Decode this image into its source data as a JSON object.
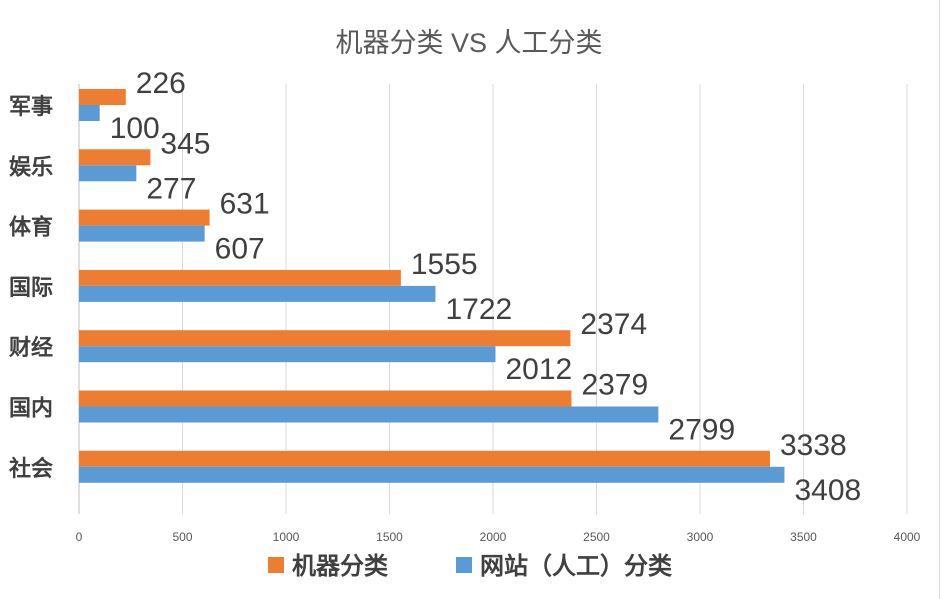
{
  "chart_data": {
    "type": "bar",
    "orientation": "horizontal",
    "title": "机器分类 VS 人工分类",
    "categories": [
      "军事",
      "娱乐",
      "体育",
      "国际",
      "财经",
      "国内",
      "社会"
    ],
    "series": [
      {
        "name": "机器分类",
        "color": "#ED7D31",
        "values": [
          226,
          345,
          631,
          1555,
          2374,
          2379,
          3338
        ]
      },
      {
        "name": "网站（人工）分类",
        "color": "#5B9BD5",
        "values": [
          100,
          277,
          607,
          1722,
          2012,
          2799,
          3408
        ]
      }
    ],
    "xlim": [
      0,
      4000
    ],
    "x_ticks": [
      "0",
      "500",
      "1000",
      "1500",
      "2000",
      "2500",
      "3000",
      "3500",
      "4000"
    ],
    "grid": true,
    "legend_position": "bottom",
    "data_labels": true
  }
}
